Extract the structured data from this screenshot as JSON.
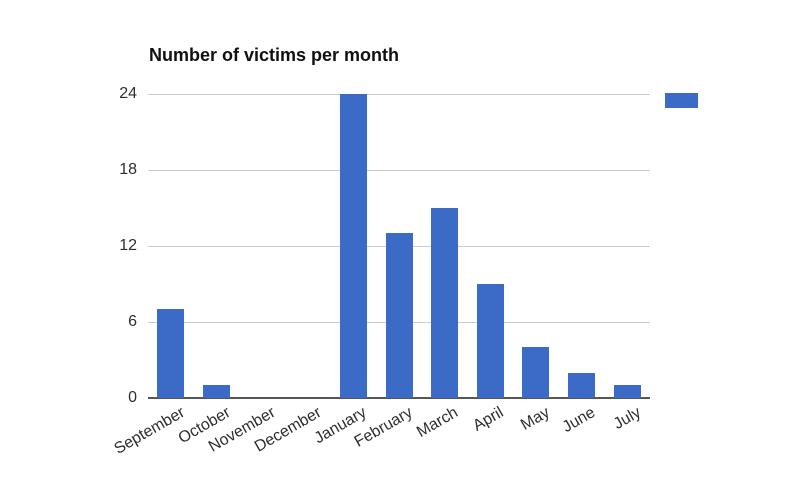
{
  "title": "Number of victims per month",
  "colors": {
    "bar": "#3b6bc6",
    "gridline": "#cccccc",
    "baseline": "#565656",
    "title_text": "#111111",
    "tick_text": "#2e2e2e",
    "background": "#ffffff"
  },
  "chart_data": {
    "type": "bar",
    "title": "Number of victims per month",
    "categories": [
      "September",
      "October",
      "November",
      "December",
      "January",
      "February",
      "March",
      "April",
      "May",
      "June",
      "July"
    ],
    "values": [
      7,
      1,
      0,
      0,
      24,
      13,
      15,
      9,
      4,
      2,
      1
    ],
    "xlabel": "",
    "ylabel": "",
    "ylim": [
      0,
      24
    ],
    "yticks": [
      0,
      6,
      12,
      18,
      24
    ],
    "grid": true,
    "x_tick_rotation_deg": -30,
    "legend": {
      "visible": true,
      "label": "",
      "position": "top-right",
      "swatch_color": "#3b6bc6"
    }
  }
}
